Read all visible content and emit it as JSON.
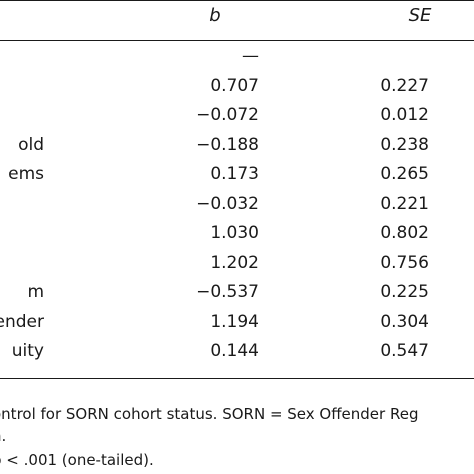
{
  "table": {
    "headers": {
      "b": "b",
      "se": "SE"
    },
    "rows": [
      {
        "label": "",
        "b": "—",
        "se": ""
      },
      {
        "label": "",
        "b": "0.707",
        "se": "0.227"
      },
      {
        "label": "",
        "b": "−0.072",
        "se": "0.012"
      },
      {
        "label": "old",
        "b": "−0.188",
        "se": "0.238"
      },
      {
        "label": "ems",
        "b": "0.173",
        "se": "0.265"
      },
      {
        "label": "",
        "b": "−0.032",
        "se": "0.221"
      },
      {
        "label": "",
        "b": "1.030",
        "se": "0.802"
      },
      {
        "label": "",
        "b": "1.202",
        "se": "0.756"
      },
      {
        "label": "m",
        "b": "−0.537",
        "se": "0.225"
      },
      {
        "label": "ffender",
        "b": "1.194",
        "se": "0.304"
      },
      {
        "label": "uity",
        "b": "0.144",
        "se": "0.547"
      }
    ]
  },
  "notes": {
    "line1": "ontrol for SORN cohort status. SORN = Sex Offender Reg",
    "line2": "n.",
    "line3": "p < .001 (one-tailed)."
  }
}
